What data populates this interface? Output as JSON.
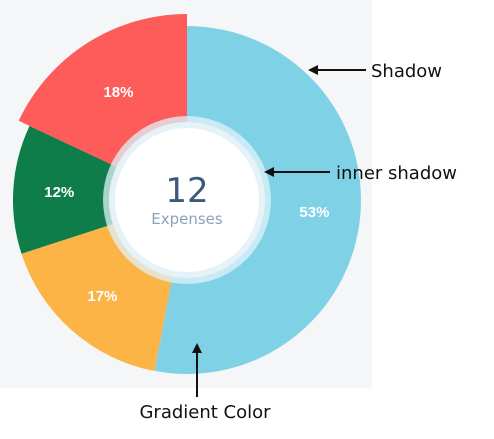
{
  "chart_data": {
    "type": "pie",
    "variant": "donut",
    "slices": [
      {
        "label": "53%",
        "value": 53,
        "color": "#7fd2e6"
      },
      {
        "label": "17%",
        "value": 17,
        "color": "#fbb445"
      },
      {
        "label": "12%",
        "value": 12,
        "color": "#0e7d4a"
      },
      {
        "label": "18%",
        "value": 18,
        "color": "#fd5c5b"
      }
    ],
    "highlighted_slice": "18%",
    "center": {
      "value": "12",
      "caption": "Expenses"
    }
  },
  "annotations": {
    "shadow": "Shadow",
    "inner_shadow": "inner shadow",
    "gradient_color": "Gradient Color"
  },
  "colors": {
    "backdrop": "#f5f6f8",
    "center_text": "#3d5a7a",
    "center_caption": "#8aa3bd",
    "inner_ring": "#dff2f8"
  }
}
